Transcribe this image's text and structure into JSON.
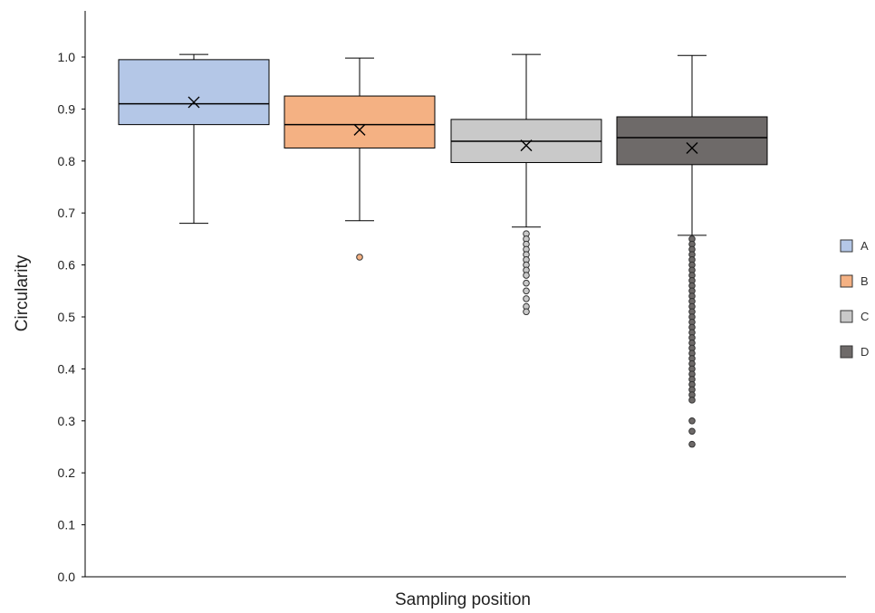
{
  "chart_data": {
    "type": "box",
    "title": "",
    "xlabel": "Sampling position",
    "ylabel": "Circularity",
    "ylim": [
      0,
      1.0
    ],
    "yticks": [
      "0.0",
      "0.1",
      "0.2",
      "0.3",
      "0.4",
      "0.5",
      "0.6",
      "0.7",
      "0.8",
      "0.9",
      "1.0"
    ],
    "ytick_values": [
      0,
      0.1,
      0.2,
      0.3,
      0.4,
      0.5,
      0.6,
      0.7,
      0.8,
      0.9,
      1.0
    ],
    "grid": false,
    "legend_position": "right",
    "series": [
      {
        "name": "A",
        "color": "#b4c7e7",
        "whisker_low": 0.68,
        "q1": 0.87,
        "median": 0.91,
        "q3": 0.995,
        "whisker_high": 1.005,
        "mean": 0.913,
        "outliers": []
      },
      {
        "name": "B",
        "color": "#f4b183",
        "whisker_low": 0.685,
        "q1": 0.825,
        "median": 0.87,
        "q3": 0.925,
        "whisker_high": 0.998,
        "mean": 0.86,
        "outliers": [
          0.615
        ]
      },
      {
        "name": "C",
        "color": "#c9c9c9",
        "whisker_low": 0.673,
        "q1": 0.797,
        "median": 0.838,
        "q3": 0.88,
        "whisker_high": 1.005,
        "mean": 0.83,
        "outliers": [
          0.66,
          0.65,
          0.64,
          0.63,
          0.62,
          0.61,
          0.6,
          0.59,
          0.58,
          0.565,
          0.55,
          0.535,
          0.52,
          0.51
        ]
      },
      {
        "name": "D",
        "color": "#6e6a69",
        "whisker_low": 0.657,
        "q1": 0.793,
        "median": 0.845,
        "q3": 0.885,
        "whisker_high": 1.003,
        "mean": 0.825,
        "outliers": [
          0.65,
          0.64,
          0.63,
          0.62,
          0.61,
          0.6,
          0.59,
          0.58,
          0.57,
          0.56,
          0.55,
          0.54,
          0.53,
          0.52,
          0.51,
          0.5,
          0.49,
          0.48,
          0.47,
          0.46,
          0.45,
          0.44,
          0.43,
          0.42,
          0.41,
          0.4,
          0.39,
          0.38,
          0.37,
          0.36,
          0.35,
          0.34,
          0.3,
          0.28,
          0.255
        ]
      }
    ]
  }
}
